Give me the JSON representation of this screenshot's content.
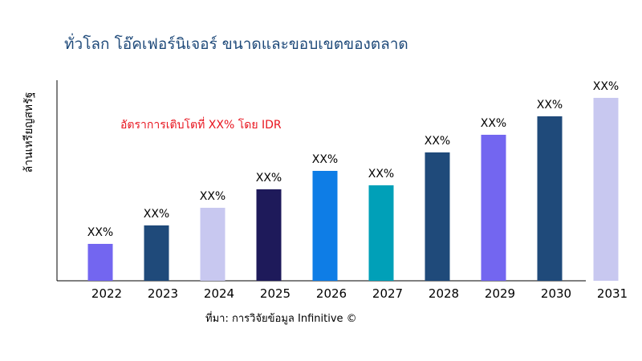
{
  "chart_data": {
    "type": "bar",
    "title": "ทั่วโลก โอ๊คเฟอร์นิเจอร์ ขนาดและขอบเขตของตลาด",
    "ylabel": "ล้านเหรียญสหรัฐ",
    "xlabel": "",
    "annotation": "อัตราการเติบโตที่ XX% โดย IDR",
    "source": "ที่มา: การวิจัยข้อมูล Infinitive ©",
    "categories": [
      "2022",
      "2023",
      "2024",
      "2025",
      "2026",
      "2027",
      "2028",
      "2029",
      "2030",
      "2031"
    ],
    "values": [
      46,
      69,
      91,
      114,
      137,
      119,
      160,
      182,
      205,
      228
    ],
    "data_labels": [
      "XX%",
      "XX%",
      "XX%",
      "XX%",
      "XX%",
      "XX%",
      "XX%",
      "XX%",
      "XX%",
      "XX%"
    ],
    "colors": [
      "#7366f0",
      "#1f4a7a",
      "#c8c8f0",
      "#1e1a5a",
      "#0e7de6",
      "#00a0b8",
      "#1f4a7a",
      "#7366f0",
      "#1f4a7a",
      "#c8c8f0"
    ],
    "ylim": [
      0,
      250
    ],
    "grid": false,
    "legend": "none"
  }
}
